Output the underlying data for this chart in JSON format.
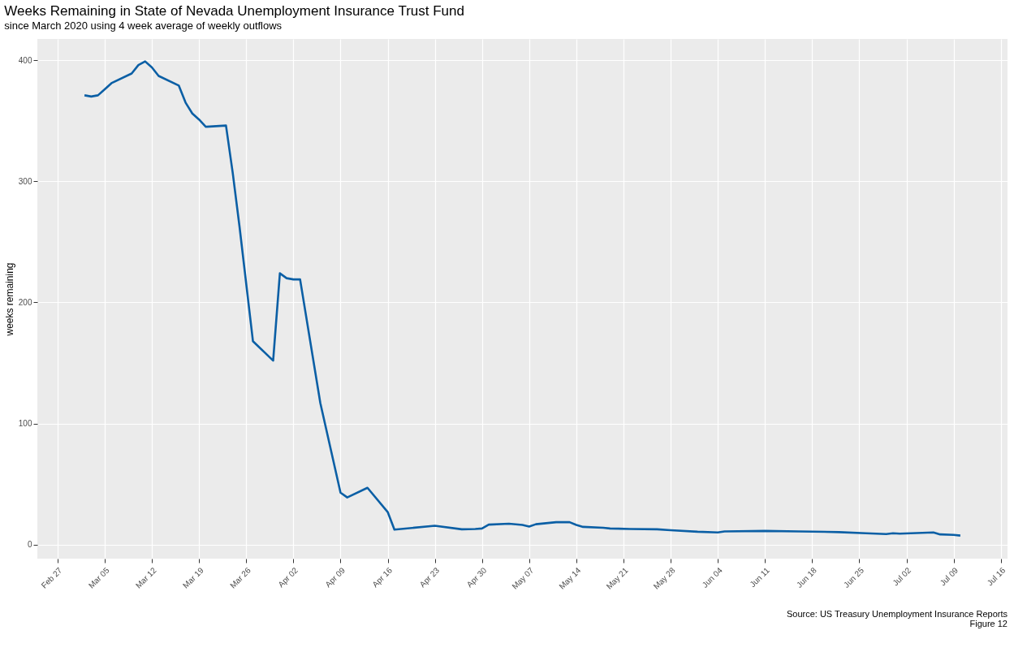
{
  "chart_data": {
    "type": "line",
    "title": "Weeks Remaining in State of Nevada Unemployment Insurance Trust Fund",
    "subtitle": "since March 2020 using 4 week average of weekly outflows",
    "ylabel": "weeks remaining",
    "x": [
      "2020-03-02",
      "2020-03-03",
      "2020-03-04",
      "2020-03-05",
      "2020-03-06",
      "2020-03-09",
      "2020-03-10",
      "2020-03-11",
      "2020-03-12",
      "2020-03-13",
      "2020-03-16",
      "2020-03-17",
      "2020-03-18",
      "2020-03-19",
      "2020-03-20",
      "2020-03-23",
      "2020-03-24",
      "2020-03-25",
      "2020-03-27",
      "2020-03-30",
      "2020-03-31",
      "2020-04-01",
      "2020-04-02",
      "2020-04-03",
      "2020-04-06",
      "2020-04-09",
      "2020-04-10",
      "2020-04-13",
      "2020-04-16",
      "2020-04-17",
      "2020-04-23",
      "2020-04-27",
      "2020-04-29",
      "2020-04-30",
      "2020-05-01",
      "2020-05-04",
      "2020-05-06",
      "2020-05-07",
      "2020-05-08",
      "2020-05-11",
      "2020-05-13",
      "2020-05-14",
      "2020-05-15",
      "2020-05-18",
      "2020-05-19",
      "2020-05-22",
      "2020-05-26",
      "2020-05-28",
      "2020-06-01",
      "2020-06-04",
      "2020-06-05",
      "2020-06-11",
      "2020-06-16",
      "2020-06-22",
      "2020-06-26",
      "2020-06-29",
      "2020-06-30",
      "2020-07-01",
      "2020-07-06",
      "2020-07-07",
      "2020-07-09",
      "2020-07-10"
    ],
    "series": [
      {
        "color": "#0b5fa5",
        "values": [
          371,
          370,
          371,
          376,
          381,
          389,
          396,
          399,
          394,
          387,
          379,
          365,
          356,
          351,
          345,
          346,
          307,
          263,
          168,
          152,
          224,
          220,
          219,
          219,
          117,
          43,
          39,
          47,
          27,
          12.5,
          15.6,
          12.7,
          13,
          13.4,
          16.6,
          17.3,
          16.3,
          15,
          16.9,
          18.6,
          18.6,
          16.3,
          14.7,
          14,
          13.4,
          13,
          12.7,
          12,
          10.7,
          10.1,
          11,
          11.4,
          11,
          10.4,
          9.4,
          8.8,
          9.4,
          9.1,
          10.1,
          8.5,
          8.1,
          7.5
        ]
      }
    ],
    "xlim": [
      "2020-02-24",
      "2020-07-17"
    ],
    "xticks": [
      {
        "value": "2020-02-27",
        "label": "Feb 27"
      },
      {
        "value": "2020-03-05",
        "label": "Mar 05"
      },
      {
        "value": "2020-03-12",
        "label": "Mar 12"
      },
      {
        "value": "2020-03-19",
        "label": "Mar 19"
      },
      {
        "value": "2020-03-26",
        "label": "Mar 26"
      },
      {
        "value": "2020-04-02",
        "label": "Apr 02"
      },
      {
        "value": "2020-04-09",
        "label": "Apr 09"
      },
      {
        "value": "2020-04-16",
        "label": "Apr 16"
      },
      {
        "value": "2020-04-23",
        "label": "Apr 23"
      },
      {
        "value": "2020-04-30",
        "label": "Apr 30"
      },
      {
        "value": "2020-05-07",
        "label": "May 07"
      },
      {
        "value": "2020-05-14",
        "label": "May 14"
      },
      {
        "value": "2020-05-21",
        "label": "May 21"
      },
      {
        "value": "2020-05-28",
        "label": "May 28"
      },
      {
        "value": "2020-06-04",
        "label": "Jun 04"
      },
      {
        "value": "2020-06-11",
        "label": "Jun 11"
      },
      {
        "value": "2020-06-18",
        "label": "Jun 18"
      },
      {
        "value": "2020-06-25",
        "label": "Jun 25"
      },
      {
        "value": "2020-07-02",
        "label": "Jul 02"
      },
      {
        "value": "2020-07-09",
        "label": "Jul 09"
      },
      {
        "value": "2020-07-16",
        "label": "Jul 16"
      }
    ],
    "ylim": [
      -11.5,
      417.5
    ],
    "yticks": [
      0,
      100,
      200,
      300,
      400
    ],
    "grid": true,
    "marker": "none",
    "line_style": "solid",
    "annotations": [
      "Source: US Treasury Unemployment Insurance Reports",
      "Figure 12"
    ]
  }
}
